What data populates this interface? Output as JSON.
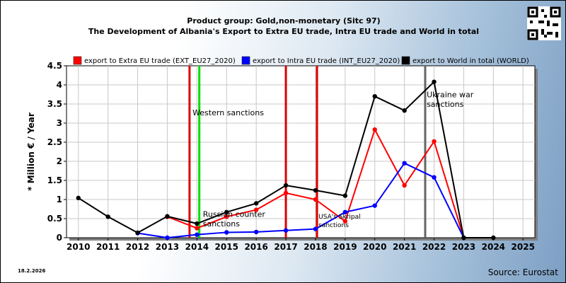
{
  "header": {
    "title": "Product group: Gold,non-monetary (Sitc 97)",
    "subtitle": "The Development of Albania's Export to Extra EU trade, Intra EU trade and World in total"
  },
  "footer": {
    "date": "18.2.2026",
    "source": "Source: Eurostat"
  },
  "colors": {
    "extra": "#ff0000",
    "intra": "#0000ff",
    "world": "#000000",
    "plot_bg": "#ffffff",
    "grid": "#c8c8c8",
    "sanction_red": "#dd0000",
    "sanction_green": "#00dd00",
    "sanction_gray": "#666666"
  },
  "chart_data": {
    "type": "line",
    "title": "Product group: Gold,non-monetary (Sitc 97)",
    "subtitle": "The Development of Albania's Export to Extra EU trade, Intra EU trade and World in total",
    "ylabel": "* Million € / Year",
    "xlabel": "",
    "x": [
      "2010",
      "2011",
      "2012",
      "2013",
      "2014",
      "2015",
      "2016",
      "2017",
      "2018",
      "2019",
      "2020",
      "2021",
      "2022",
      "2023",
      "2024",
      "2025"
    ],
    "ylim": [
      0,
      4.5
    ],
    "yticks": [
      "0",
      "0.5",
      "1",
      "1.5",
      "2",
      "2.5",
      "3",
      "3.5",
      "4",
      "4.5"
    ],
    "grid": true,
    "legend_position": "top",
    "series": [
      {
        "name": "export to Extra EU trade (EXT_EU27_2020)",
        "color": "#ff0000",
        "values": [
          null,
          null,
          null,
          0.55,
          0.25,
          0.55,
          0.73,
          1.17,
          1.0,
          0.43,
          2.83,
          1.37,
          2.52,
          0,
          null,
          null
        ]
      },
      {
        "name": "export to Intra EU trade (INT_EU27_2020)",
        "color": "#0000ff",
        "values": [
          null,
          null,
          0.12,
          0.0,
          0.08,
          0.14,
          0.15,
          0.19,
          0.23,
          0.67,
          0.84,
          1.95,
          1.58,
          0,
          null,
          null
        ]
      },
      {
        "name": "export to World in total (WORLD)",
        "color": "#000000",
        "values": [
          1.04,
          0.55,
          0.13,
          0.56,
          0.37,
          0.67,
          0.9,
          1.37,
          1.24,
          1.1,
          3.7,
          3.33,
          4.08,
          0,
          0,
          null
        ]
      }
    ],
    "events": [
      {
        "x": 2013.75,
        "color": "#dd0000"
      },
      {
        "x": 2014.08,
        "color": "#00dd00"
      },
      {
        "x": 2017.0,
        "color": "#dd0000"
      },
      {
        "x": 2018.05,
        "color": "#dd0000"
      },
      {
        "x": 2021.7,
        "color": "#666666"
      }
    ],
    "annotations": [
      {
        "text": "Western sanctions",
        "x": 2013.85,
        "y": 3.2,
        "size": "normal"
      },
      {
        "text": "Russian counter",
        "x": 2014.2,
        "y": 0.55,
        "size": "normal"
      },
      {
        "text": "sanctions",
        "x": 2014.2,
        "y": 0.3,
        "size": "normal"
      },
      {
        "text": "USA's Skripal",
        "x": 2018.1,
        "y": 0.5,
        "size": "small"
      },
      {
        "text": "sanctions",
        "x": 2018.1,
        "y": 0.28,
        "size": "small"
      },
      {
        "text": "Ukraine war",
        "x": 2021.75,
        "y": 3.68,
        "size": "normal"
      },
      {
        "text": "sanctions",
        "x": 2021.75,
        "y": 3.43,
        "size": "normal"
      }
    ]
  }
}
